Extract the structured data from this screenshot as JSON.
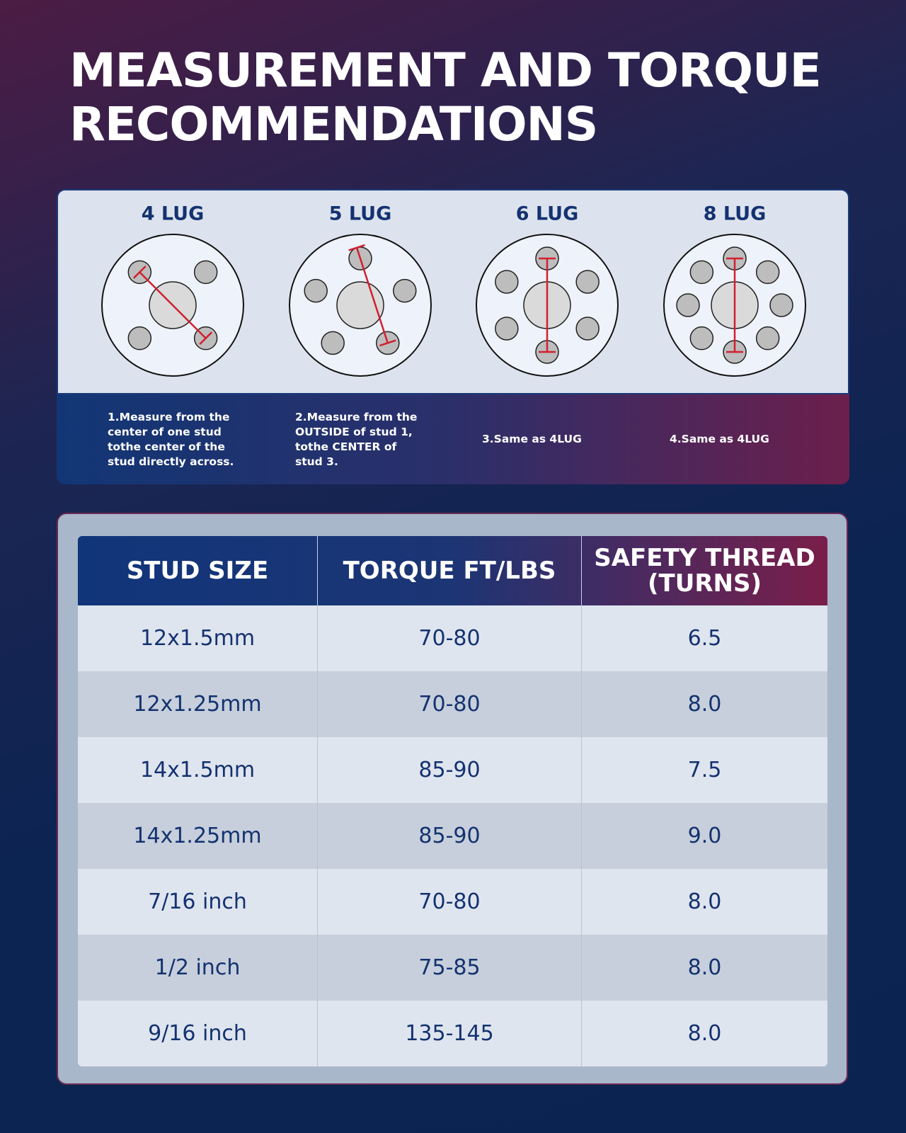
{
  "title": "MEASUREMENT AND TORQUE RECOMMENDATIONS",
  "lugs": [
    {
      "label": "4 LUG",
      "instruction": "1.Measure from the center of one stud tothe center of the stud directly across."
    },
    {
      "label": "5 LUG",
      "instruction": "2.Measure from the OUTSIDE of stud 1, tothe CENTER of stud 3."
    },
    {
      "label": "6 LUG",
      "instruction": "3.Same as 4LUG"
    },
    {
      "label": "8 LUG",
      "instruction": "4.Same as 4LUG"
    }
  ],
  "table": {
    "headers": [
      "STUD SIZE",
      "TORQUE FT/LBS",
      "SAFETY THREAD (TURNS)"
    ],
    "rows": [
      [
        "12x1.5mm",
        "70-80",
        "6.5"
      ],
      [
        "12x1.25mm",
        "70-80",
        "8.0"
      ],
      [
        "14x1.5mm",
        "85-90",
        "7.5"
      ],
      [
        "14x1.25mm",
        "85-90",
        "9.0"
      ],
      [
        "7/16 inch",
        "70-80",
        "8.0"
      ],
      [
        "1/2 inch",
        "75-85",
        "8.0"
      ],
      [
        "9/16 inch",
        "135-145",
        "8.0"
      ]
    ]
  }
}
